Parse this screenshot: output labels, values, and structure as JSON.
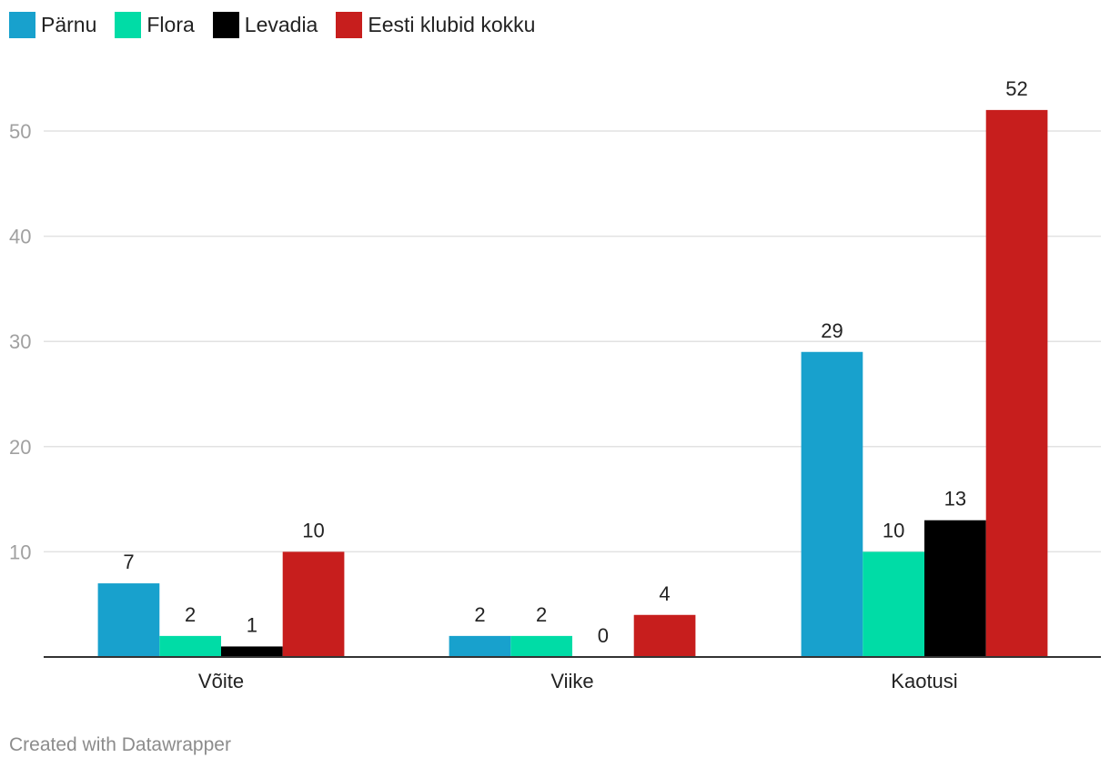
{
  "chart_data": {
    "type": "bar",
    "categories": [
      "Võite",
      "Viike",
      "Kaotusi"
    ],
    "series": [
      {
        "name": "Pärnu",
        "color": "#18a1cd",
        "values": [
          7,
          2,
          29
        ]
      },
      {
        "name": "Flora",
        "color": "#00dca6",
        "values": [
          2,
          2,
          10
        ]
      },
      {
        "name": "Levadia",
        "color": "#000000",
        "values": [
          1,
          0,
          13
        ]
      },
      {
        "name": "Eesti klubid kokku",
        "color": "#c71e1d",
        "values": [
          10,
          4,
          52
        ]
      }
    ],
    "title": "",
    "xlabel": "",
    "ylabel": "",
    "ylim": [
      0,
      57
    ],
    "yticks": [
      10,
      20,
      30,
      40,
      50
    ],
    "grid": true,
    "legend": "top-left",
    "data_labels": true
  },
  "footer": {
    "credit": "Created with Datawrapper"
  }
}
